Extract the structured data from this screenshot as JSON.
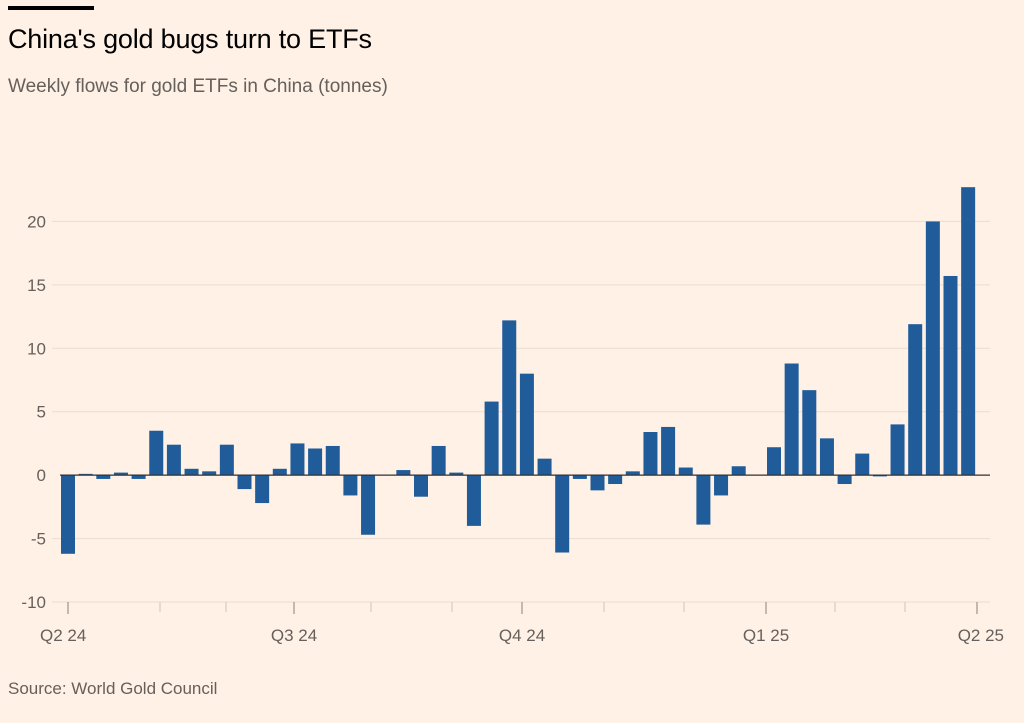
{
  "header": {
    "title": "China's gold bugs turn to ETFs",
    "subtitle": "Weekly flows for gold ETFs in China (tonnes)"
  },
  "footer": {
    "source": "Source: World Gold Council"
  },
  "colors": {
    "background": "#FFF1E5",
    "bar": "#1F5C99",
    "grid": "#E9DCD1",
    "zero_line": "#33302E",
    "tick_text": "#66605C"
  },
  "chart_data": {
    "type": "bar",
    "title": "China's gold bugs turn to ETFs",
    "subtitle": "Weekly flows for gold ETFs in China (tonnes)",
    "xlabel": "",
    "ylabel": "",
    "ylim": [
      -10,
      25
    ],
    "yticks": [
      -10,
      -5,
      0,
      5,
      10,
      15,
      20
    ],
    "ytick_labels": [
      "-10",
      "-5",
      "0",
      "5",
      "10",
      "15",
      "20"
    ],
    "x_tick_labels": [
      "Q2 24",
      "Q3 24",
      "Q4 24",
      "Q1 25",
      "Q2 25"
    ],
    "grid": true,
    "legend": "none",
    "values": [
      -6.2,
      0.1,
      -0.3,
      0.2,
      -0.3,
      3.5,
      2.4,
      0.5,
      0.3,
      2.4,
      -1.1,
      -2.2,
      0.5,
      2.5,
      2.1,
      2.3,
      -1.6,
      -4.7,
      null,
      0.4,
      -1.7,
      2.3,
      0.2,
      -4.0,
      5.8,
      12.2,
      8.0,
      1.3,
      -6.1,
      -0.3,
      -1.2,
      -0.7,
      0.3,
      3.4,
      3.8,
      0.6,
      -3.9,
      -1.6,
      0.7,
      null,
      2.2,
      8.8,
      6.7,
      2.9,
      -0.7,
      1.7,
      -0.1,
      4.0,
      11.9,
      20.0,
      15.7,
      22.7
    ]
  }
}
